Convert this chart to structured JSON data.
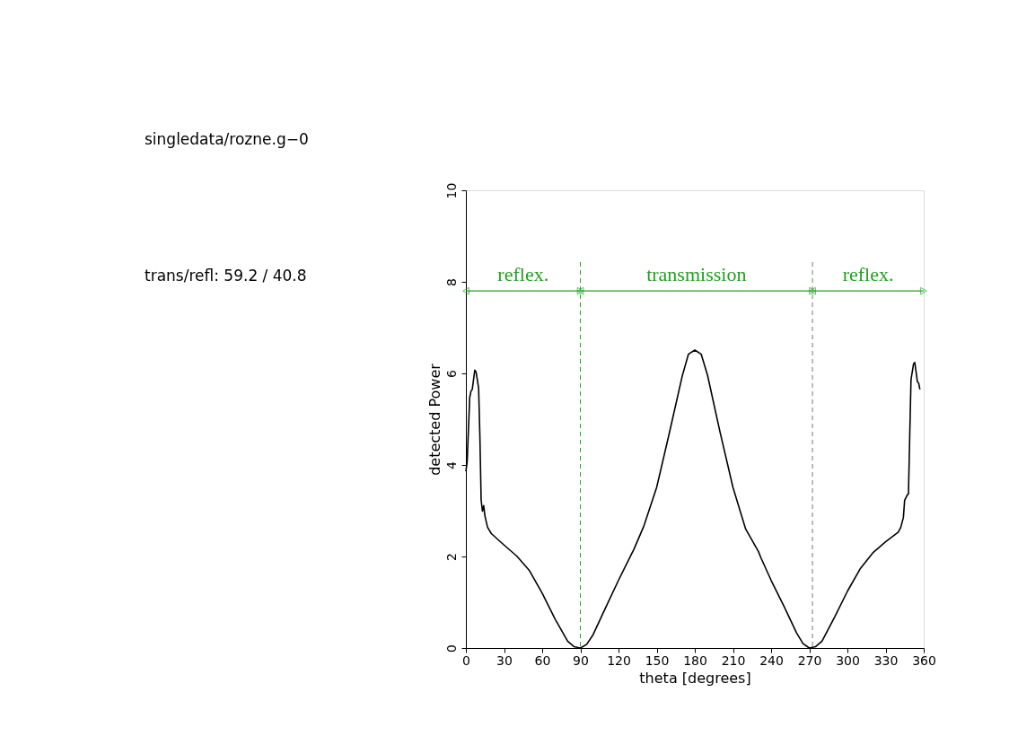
{
  "chart_data": {
    "type": "line",
    "xlabel": "theta [degrees]",
    "ylabel": "detected Power",
    "xlim": [
      0,
      360
    ],
    "xticks": [
      0,
      30,
      60,
      90,
      120,
      150,
      180,
      210,
      240,
      270,
      300,
      330,
      360
    ],
    "ylim": [
      0,
      10
    ],
    "yticks": [
      0,
      2,
      4,
      6,
      8,
      10
    ],
    "grid": false,
    "line_style": "solid",
    "series": [
      {
        "color": "#000000",
        "x": [
          0,
          1,
          3,
          4,
          5,
          7,
          8,
          10,
          11,
          12,
          13,
          14,
          15,
          17,
          20,
          30,
          40,
          50,
          60,
          70,
          80,
          85,
          90,
          95,
          100,
          110,
          120,
          130,
          132,
          140,
          150,
          160,
          170,
          175,
          180,
          185,
          190,
          200,
          210,
          220,
          230,
          232,
          240,
          250,
          260,
          265,
          270,
          275,
          280,
          290,
          300,
          310,
          320,
          330,
          340,
          342,
          344,
          345,
          347,
          348,
          349,
          350,
          352,
          353,
          355,
          356,
          357
        ],
        "values": [
          3.86,
          4.07,
          5.47,
          5.61,
          5.65,
          6.07,
          6.03,
          5.68,
          4.63,
          3.23,
          2.99,
          3.11,
          2.88,
          2.64,
          2.5,
          2.25,
          2.01,
          1.69,
          1.2,
          0.64,
          0.15,
          0.03,
          0,
          0.08,
          0.29,
          0.89,
          1.48,
          2.04,
          2.15,
          2.67,
          3.51,
          4.7,
          5.93,
          6.42,
          6.51,
          6.42,
          5.96,
          4.7,
          3.51,
          2.6,
          2.11,
          1.97,
          1.48,
          0.92,
          0.33,
          0.1,
          0,
          0.03,
          0.15,
          0.68,
          1.24,
          1.73,
          2.08,
          2.32,
          2.53,
          2.64,
          2.85,
          3.23,
          3.34,
          3.37,
          4.63,
          5.86,
          6.21,
          6.24,
          5.82,
          5.79,
          5.65
        ]
      },
      {
        "name": "reflex.",
        "color": "#22a022",
        "marker": "triangle",
        "x": [
          0,
          90
        ],
        "values": [
          7.8,
          7.8
        ]
      },
      {
        "name": "transmission",
        "color": "#22a022",
        "marker": "triangle",
        "x": [
          90,
          272.5
        ],
        "values": [
          7.8,
          7.8
        ]
      },
      {
        "name": "reflex.",
        "color": "#22a022",
        "marker": "triangle",
        "x": [
          272.5,
          360
        ],
        "values": [
          7.8,
          7.8
        ]
      }
    ],
    "ref_lines": [
      {
        "axis": "x",
        "value": 90,
        "color": "#22aa22",
        "line_style": "dashed"
      },
      {
        "axis": "x",
        "value": 272.5,
        "color": "#777777",
        "line_style": "dashed"
      }
    ],
    "annotations": [
      "singledata/rozne.g−0",
      "trans/refl:  59.2 / 40.8"
    ]
  }
}
